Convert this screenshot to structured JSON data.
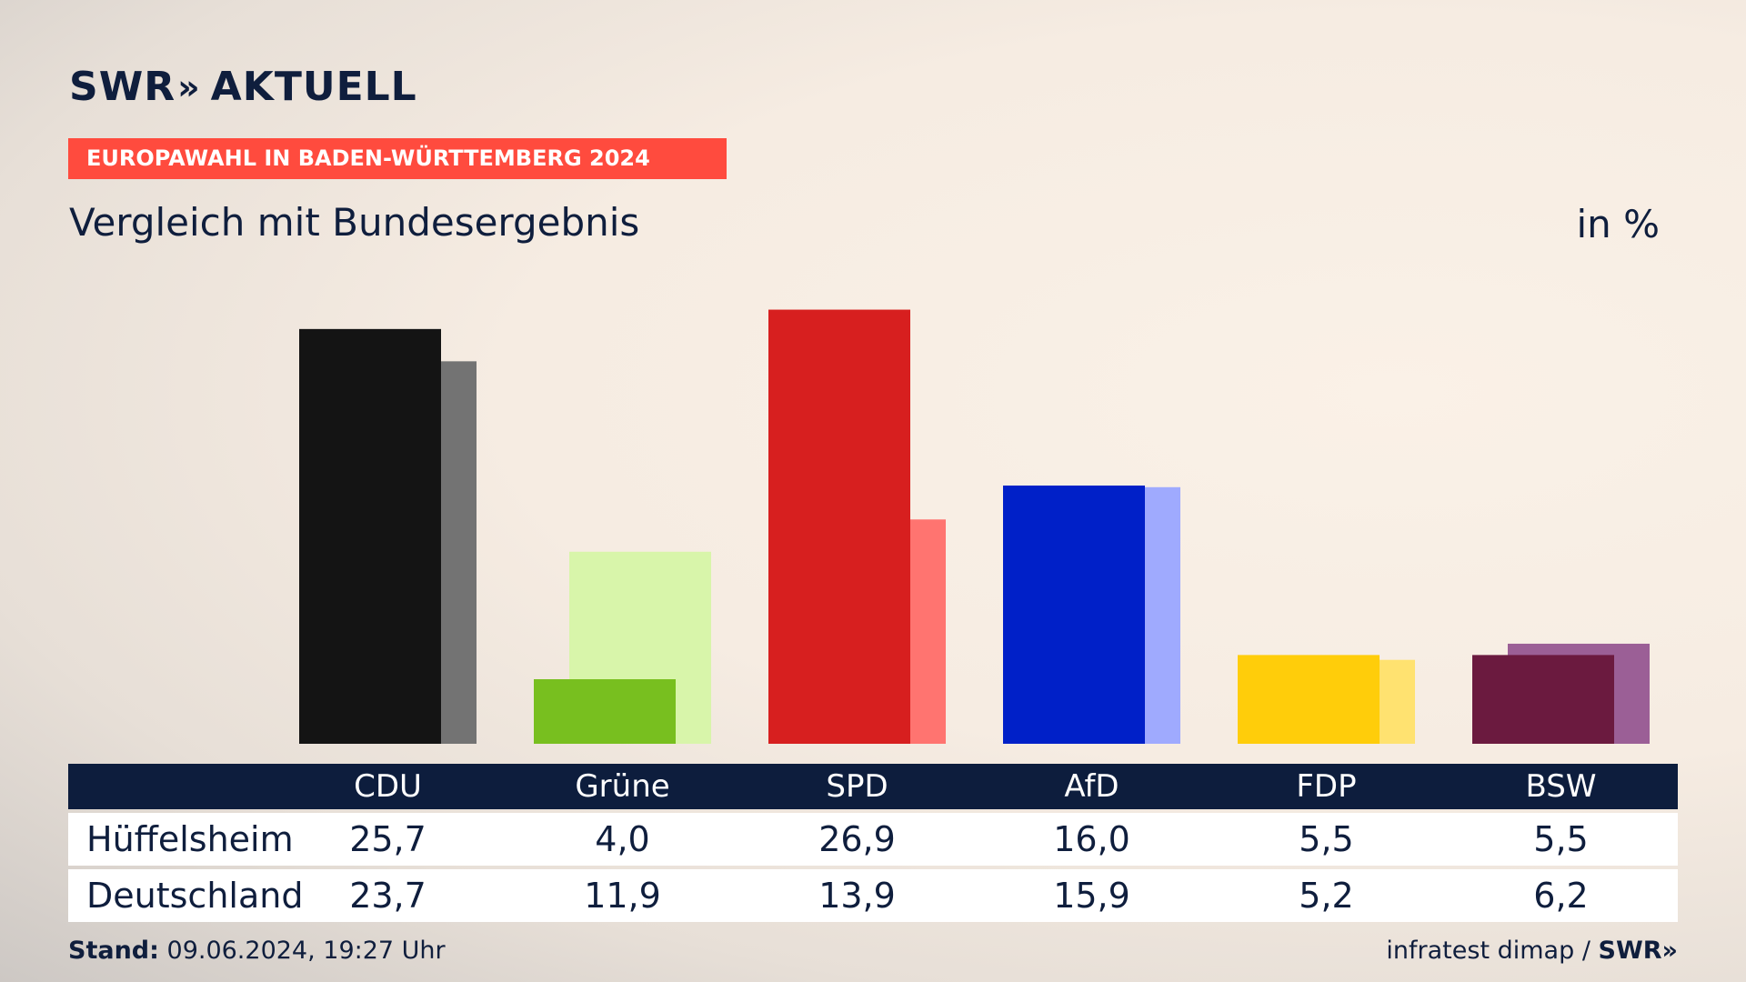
{
  "brand": {
    "logo_main": "SWR",
    "logo_chevrons": "»",
    "logo_sub": "AKTUELL"
  },
  "banner": "EUROPAWAHL IN BADEN-WÜRTTEMBERG 2024",
  "subtitle": "Vergleich mit Bundesergebnis",
  "unit": "in %",
  "table": {
    "rows": [
      {
        "label": "Hüffelsheim"
      },
      {
        "label": "Deutschland"
      }
    ]
  },
  "footer": {
    "stand_label": "Stand:",
    "stand_value": "09.06.2024, 19:27 Uhr",
    "source": "infratest dimap /",
    "source_logo": "SWR»"
  },
  "chart_data": {
    "type": "bar",
    "categories": [
      "CDU",
      "Grüne",
      "SPD",
      "AfD",
      "FDP",
      "BSW"
    ],
    "series": [
      {
        "name": "Hüffelsheim",
        "values": [
          25.7,
          4.0,
          26.9,
          16.0,
          5.5,
          5.5
        ],
        "display": [
          "25,7",
          "4,0",
          "26,9",
          "16,0",
          "5,5",
          "5,5"
        ],
        "colors": [
          "#141414",
          "#78bf1f",
          "#d71f1f",
          "#0020c8",
          "#ffcd0a",
          "#6b1a3f"
        ]
      },
      {
        "name": "Deutschland",
        "values": [
          23.7,
          11.9,
          13.9,
          15.9,
          5.2,
          6.2
        ],
        "display": [
          "23,7",
          "11,9",
          "13,9",
          "15,9",
          "5,2",
          "6,2"
        ],
        "colors": [
          "#737373",
          "#d8f5aa",
          "#ff7470",
          "#9faafe",
          "#ffe270",
          "#9b5f96"
        ]
      }
    ],
    "ylim": [
      0,
      27
    ]
  }
}
